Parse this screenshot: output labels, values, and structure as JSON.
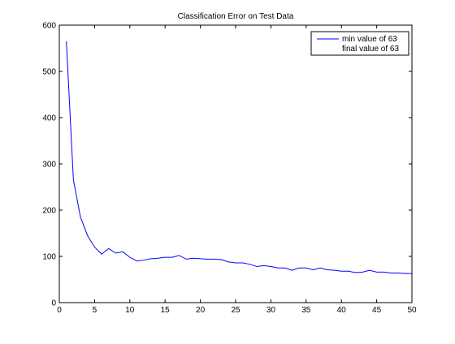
{
  "figure": {
    "background": "#ffffff"
  },
  "chart_data": {
    "type": "line",
    "title": "Classification Error on Test Data",
    "xlabel": "",
    "ylabel": "",
    "xlim": [
      0,
      50
    ],
    "ylim": [
      0,
      600
    ],
    "xticks": [
      0,
      5,
      10,
      15,
      20,
      25,
      30,
      35,
      40,
      45,
      50
    ],
    "yticks": [
      0,
      100,
      200,
      300,
      400,
      500,
      600
    ],
    "grid": false,
    "legend_placement": "top-right",
    "legend": [
      "min value of 63",
      "final value of 63"
    ],
    "series": [
      {
        "name": "min value of 63",
        "color": "#0000ff",
        "x": [
          1,
          2,
          3,
          4,
          5,
          6,
          7,
          8,
          9,
          10,
          11,
          12,
          13,
          14,
          15,
          16,
          17,
          18,
          19,
          20,
          21,
          22,
          23,
          24,
          25,
          26,
          27,
          28,
          29,
          30,
          31,
          32,
          33,
          34,
          35,
          36,
          37,
          38,
          39,
          40,
          41,
          42,
          43,
          44,
          45,
          46,
          47,
          48,
          49,
          50
        ],
        "values": [
          565,
          265,
          185,
          145,
          120,
          105,
          117,
          107,
          110,
          98,
          90,
          92,
          95,
          96,
          98,
          98,
          102,
          94,
          96,
          95,
          94,
          94,
          93,
          88,
          86,
          86,
          83,
          78,
          80,
          78,
          75,
          75,
          70,
          75,
          75,
          71,
          75,
          71,
          70,
          68,
          68,
          65,
          66,
          70,
          66,
          66,
          64,
          64,
          63,
          63
        ]
      },
      {
        "name": "final value of 63",
        "color": "#0000ff",
        "marker": "none"
      }
    ]
  }
}
